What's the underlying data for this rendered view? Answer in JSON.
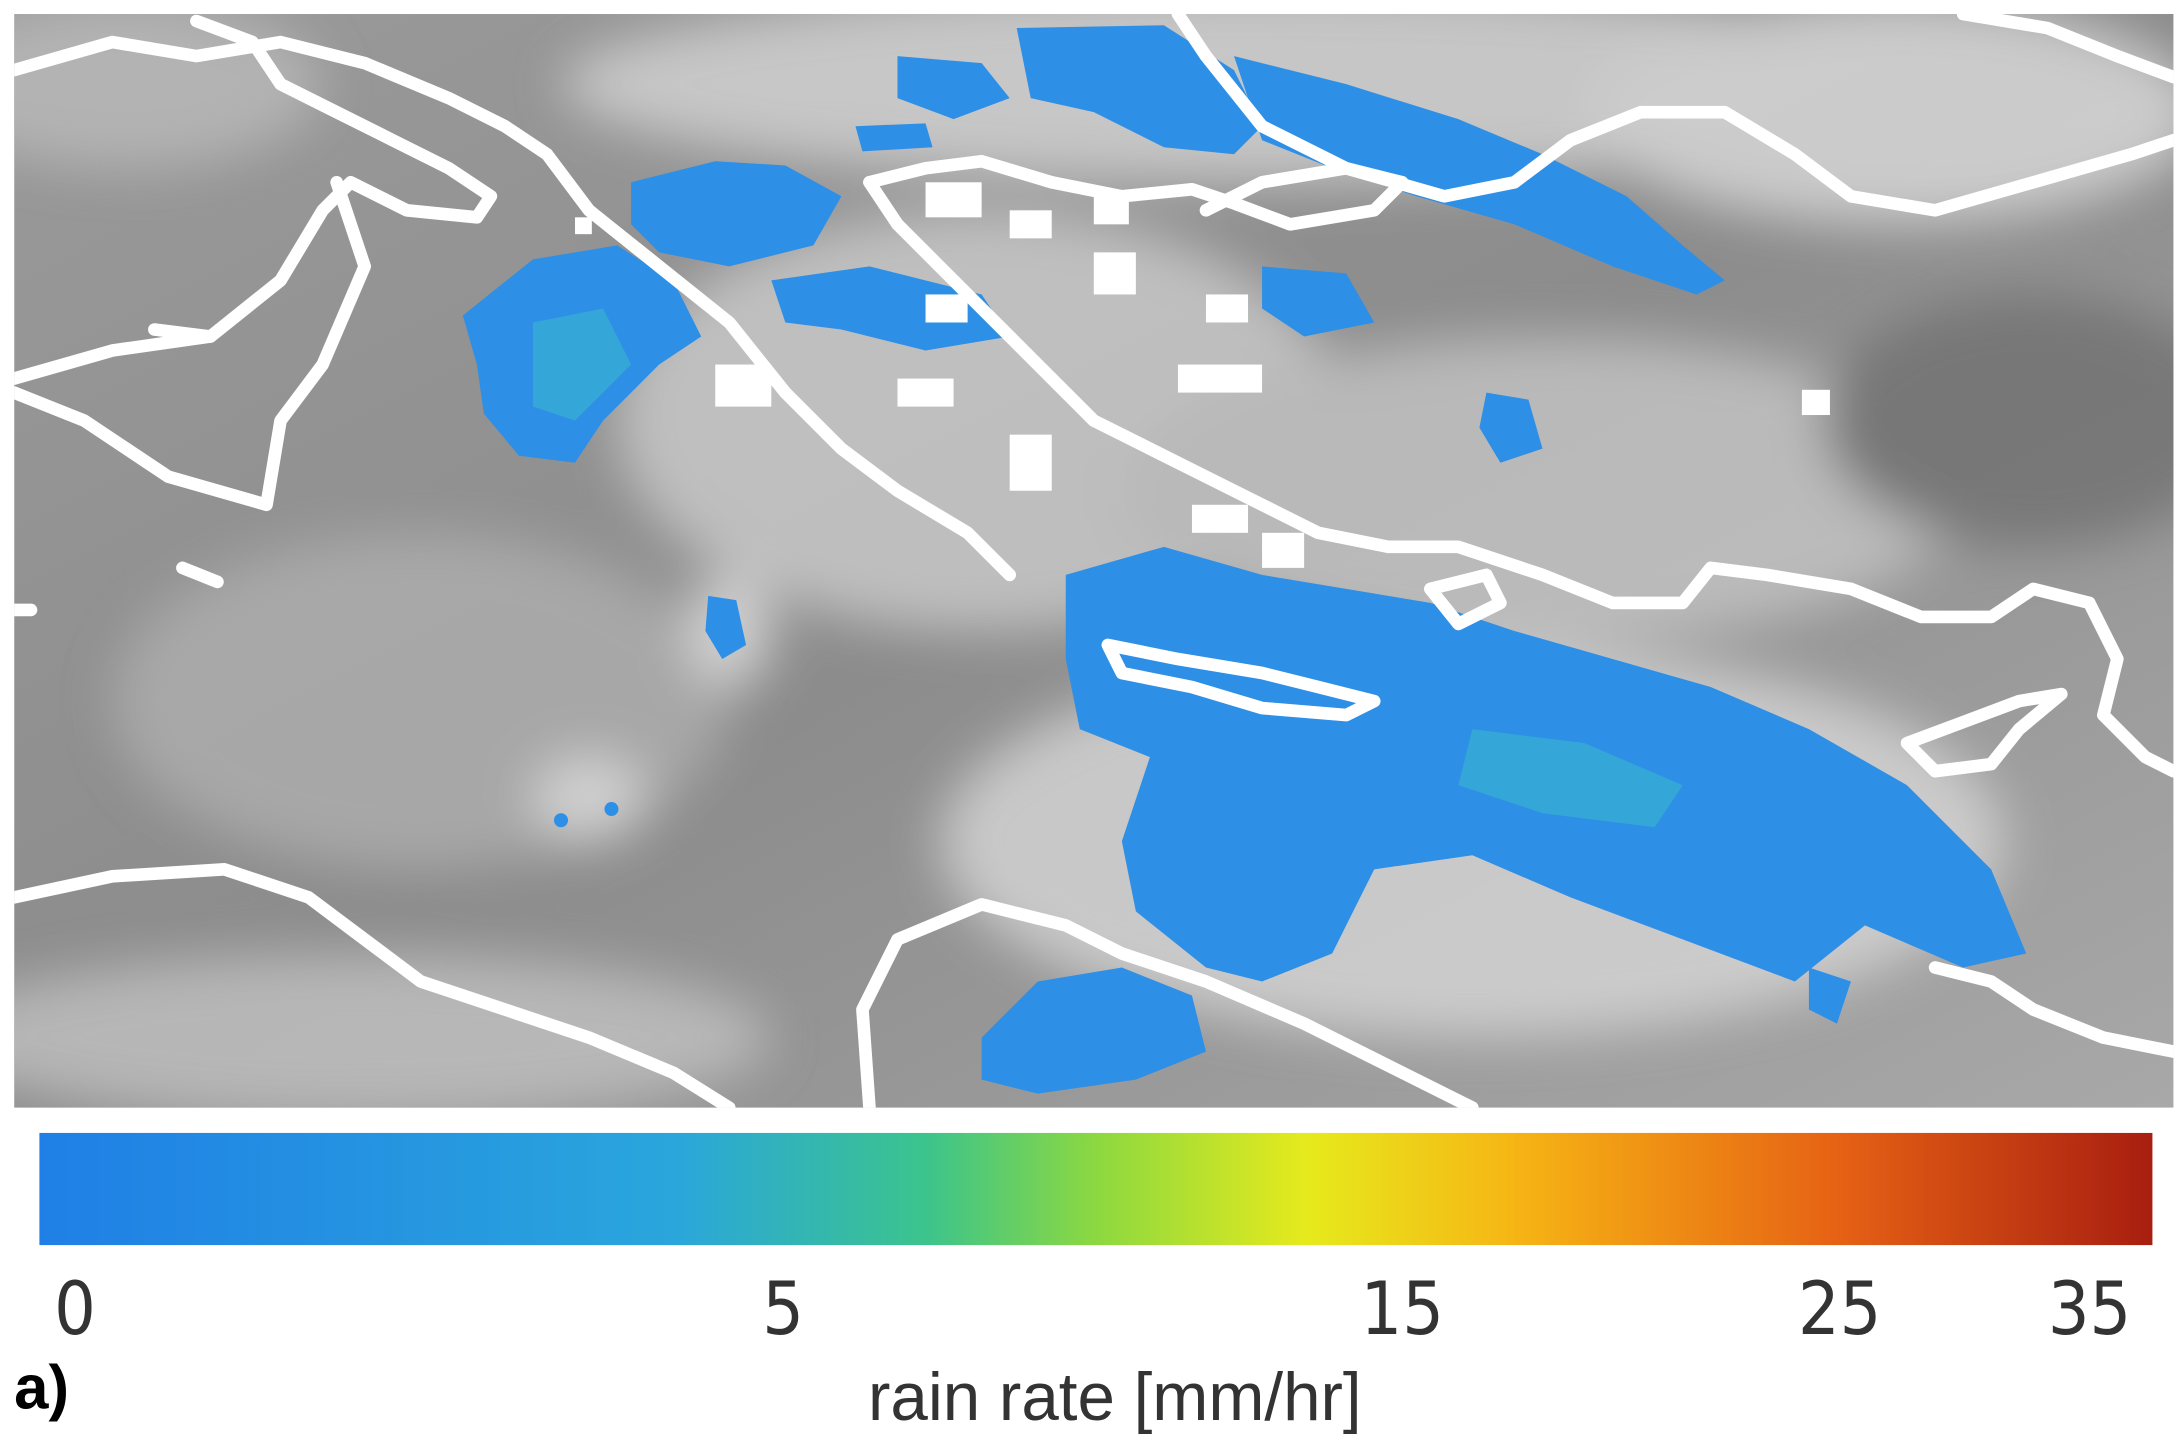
{
  "panel_label": "a)",
  "colorbar": {
    "label": "rain rate [mm/hr]",
    "ticks": [
      0,
      5,
      15,
      25,
      35
    ]
  }
}
